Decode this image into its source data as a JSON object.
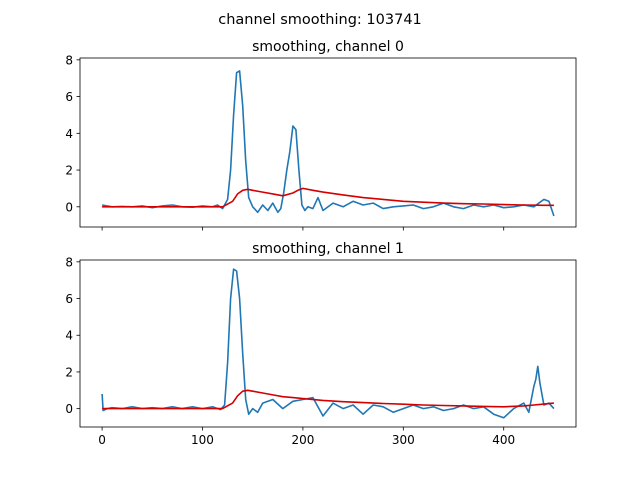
{
  "figure": {
    "suptitle": "channel smoothing: 103741"
  },
  "colors": {
    "raw": "#1f77b4",
    "smoothed": "#d40000",
    "axes": "#000000"
  },
  "chart_data": [
    {
      "type": "line",
      "title": "smoothing, channel 0",
      "xlabel": "",
      "ylabel": "",
      "xlim": [
        -22,
        472
      ],
      "ylim": [
        -1.1,
        8.1
      ],
      "xticks": [
        0,
        100,
        200,
        300,
        400
      ],
      "xtick_labels": [
        "",
        "",
        "",
        "",
        ""
      ],
      "yticks": [
        0,
        2,
        4,
        6,
        8
      ],
      "ytick_labels": [
        "0",
        "2",
        "4",
        "6",
        "8"
      ],
      "grid": false,
      "series": [
        {
          "role": "raw",
          "x": [
            0,
            10,
            20,
            30,
            40,
            50,
            60,
            70,
            80,
            90,
            100,
            110,
            115,
            120,
            125,
            128,
            131,
            134,
            137,
            140,
            143,
            146,
            150,
            155,
            160,
            165,
            170,
            175,
            178,
            181,
            184,
            187,
            190,
            193,
            196,
            199,
            202,
            205,
            210,
            215,
            220,
            230,
            240,
            250,
            260,
            270,
            280,
            290,
            300,
            310,
            320,
            330,
            340,
            350,
            360,
            370,
            380,
            390,
            400,
            410,
            420,
            430,
            440,
            445,
            450
          ],
          "y": [
            0.1,
            0.0,
            0.02,
            0.0,
            0.05,
            -0.05,
            0.05,
            0.1,
            0.0,
            -0.02,
            0.05,
            0.0,
            0.1,
            -0.1,
            0.4,
            2.0,
            5.0,
            7.3,
            7.4,
            5.5,
            2.5,
            0.5,
            0.0,
            -0.3,
            0.1,
            -0.2,
            0.2,
            -0.3,
            -0.1,
            0.8,
            2.0,
            3.0,
            4.4,
            4.2,
            2.0,
            0.1,
            -0.2,
            0.0,
            -0.1,
            0.5,
            -0.2,
            0.2,
            0.0,
            0.3,
            0.1,
            0.2,
            -0.1,
            0.0,
            0.05,
            0.1,
            -0.1,
            0.0,
            0.2,
            0.0,
            -0.1,
            0.1,
            0.0,
            0.1,
            -0.05,
            0.0,
            0.1,
            0.0,
            0.4,
            0.3,
            -0.5
          ]
        },
        {
          "role": "smoothed",
          "x": [
            0,
            50,
            100,
            120,
            130,
            135,
            140,
            145,
            150,
            160,
            170,
            180,
            190,
            195,
            200,
            210,
            220,
            240,
            260,
            280,
            300,
            320,
            340,
            360,
            380,
            400,
            420,
            440,
            450
          ],
          "y": [
            0.0,
            0.0,
            0.0,
            0.0,
            0.3,
            0.7,
            0.9,
            0.95,
            0.9,
            0.8,
            0.7,
            0.6,
            0.75,
            0.9,
            1.0,
            0.9,
            0.8,
            0.65,
            0.5,
            0.4,
            0.3,
            0.25,
            0.2,
            0.17,
            0.15,
            0.12,
            0.1,
            0.08,
            0.08
          ]
        }
      ]
    },
    {
      "type": "line",
      "title": "smoothing, channel 1",
      "xlabel": "",
      "ylabel": "",
      "xlim": [
        -22,
        472
      ],
      "ylim": [
        -1.0,
        8.1
      ],
      "xticks": [
        0,
        100,
        200,
        300,
        400
      ],
      "xtick_labels": [
        "0",
        "100",
        "200",
        "300",
        "400"
      ],
      "yticks": [
        0,
        2,
        4,
        6,
        8
      ],
      "ytick_labels": [
        "0",
        "2",
        "4",
        "6",
        "8"
      ],
      "grid": false,
      "series": [
        {
          "role": "raw",
          "x": [
            0,
            1,
            5,
            10,
            20,
            30,
            40,
            50,
            60,
            70,
            80,
            90,
            100,
            110,
            118,
            122,
            125,
            128,
            131,
            134,
            137,
            140,
            143,
            146,
            150,
            155,
            160,
            170,
            180,
            190,
            200,
            210,
            220,
            230,
            240,
            250,
            260,
            270,
            280,
            290,
            300,
            310,
            320,
            330,
            340,
            350,
            360,
            370,
            380,
            390,
            400,
            410,
            420,
            425,
            430,
            432,
            434,
            436,
            438,
            440,
            445,
            450
          ],
          "y": [
            0.8,
            -0.1,
            0.0,
            0.05,
            0.0,
            0.1,
            0.0,
            0.05,
            0.0,
            0.1,
            0.0,
            0.1,
            0.0,
            0.1,
            -0.05,
            0.2,
            2.5,
            6.0,
            7.6,
            7.5,
            6.0,
            3.0,
            0.5,
            -0.3,
            0.0,
            -0.2,
            0.3,
            0.5,
            0.0,
            0.4,
            0.5,
            0.6,
            -0.4,
            0.3,
            0.0,
            0.2,
            -0.3,
            0.2,
            0.1,
            -0.2,
            0.0,
            0.2,
            0.0,
            0.1,
            -0.1,
            0.0,
            0.2,
            0.0,
            0.1,
            -0.3,
            -0.5,
            0.0,
            0.3,
            -0.2,
            1.2,
            1.6,
            2.3,
            1.4,
            0.8,
            0.2,
            0.3,
            0.0
          ]
        },
        {
          "role": "smoothed",
          "x": [
            0,
            50,
            100,
            120,
            130,
            135,
            140,
            145,
            150,
            160,
            170,
            180,
            190,
            200,
            220,
            240,
            260,
            280,
            300,
            320,
            340,
            360,
            380,
            400,
            420,
            430,
            440,
            450
          ],
          "y": [
            0.0,
            0.0,
            0.0,
            0.0,
            0.3,
            0.7,
            0.95,
            1.0,
            0.95,
            0.85,
            0.75,
            0.65,
            0.6,
            0.55,
            0.45,
            0.38,
            0.33,
            0.28,
            0.24,
            0.2,
            0.17,
            0.15,
            0.12,
            0.1,
            0.15,
            0.2,
            0.25,
            0.3
          ]
        }
      ]
    }
  ]
}
